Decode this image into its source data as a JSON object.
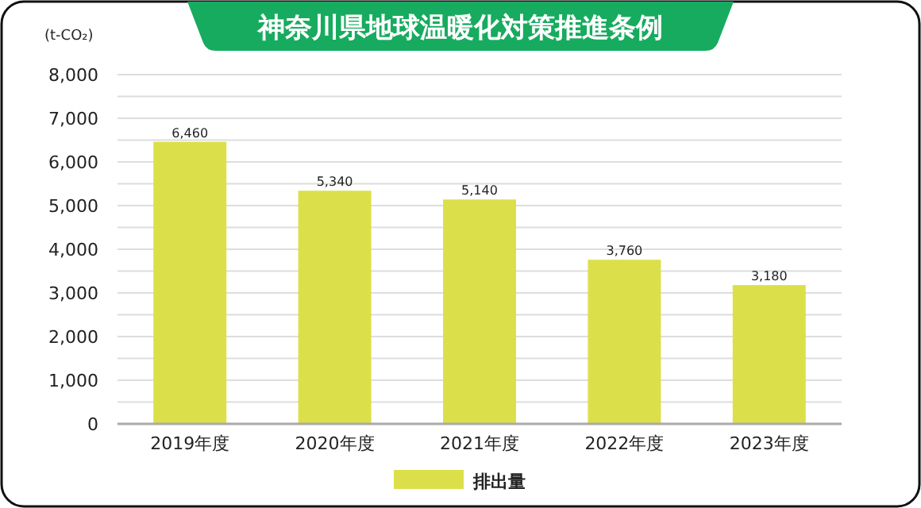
{
  "chart_data": {
    "type": "bar",
    "title": "神奈川県地球温暖化対策推進条例",
    "ylabel": "(t-CO₂)",
    "categories": [
      "2019年度",
      "2020年度",
      "2021年度",
      "2022年度",
      "2023年度"
    ],
    "series": [
      {
        "name": "排出量",
        "color": "#dbe04a",
        "values": [
          6460,
          5340,
          5140,
          3760,
          3180
        ],
        "value_labels": [
          "6,460",
          "5,340",
          "5,140",
          "3,760",
          "3,180"
        ]
      }
    ],
    "ylim": [
      0,
      8000
    ],
    "yticks": [
      0,
      {
        "value": 500,
        "label": null
      },
      {
        "value": 1000,
        "label": "1,000"
      },
      {
        "value": 1500,
        "label": null
      },
      {
        "value": 2000,
        "label": "2,000"
      },
      {
        "value": 2500,
        "label": null
      },
      {
        "value": 3000,
        "label": "3,000"
      },
      {
        "value": 3500,
        "label": null
      },
      {
        "value": 4000,
        "label": "4,000"
      },
      {
        "value": 4500,
        "label": null
      },
      {
        "value": 5000,
        "label": "5,000"
      },
      {
        "value": 5500,
        "label": null
      },
      {
        "value": 6000,
        "label": "6,000"
      },
      {
        "value": 6500,
        "label": null
      },
      {
        "value": 7000,
        "label": "7,000"
      },
      {
        "value": 7500,
        "label": null
      },
      {
        "value": 8000,
        "label": "8,000"
      }
    ],
    "grid": "y",
    "legend": "bottom"
  }
}
